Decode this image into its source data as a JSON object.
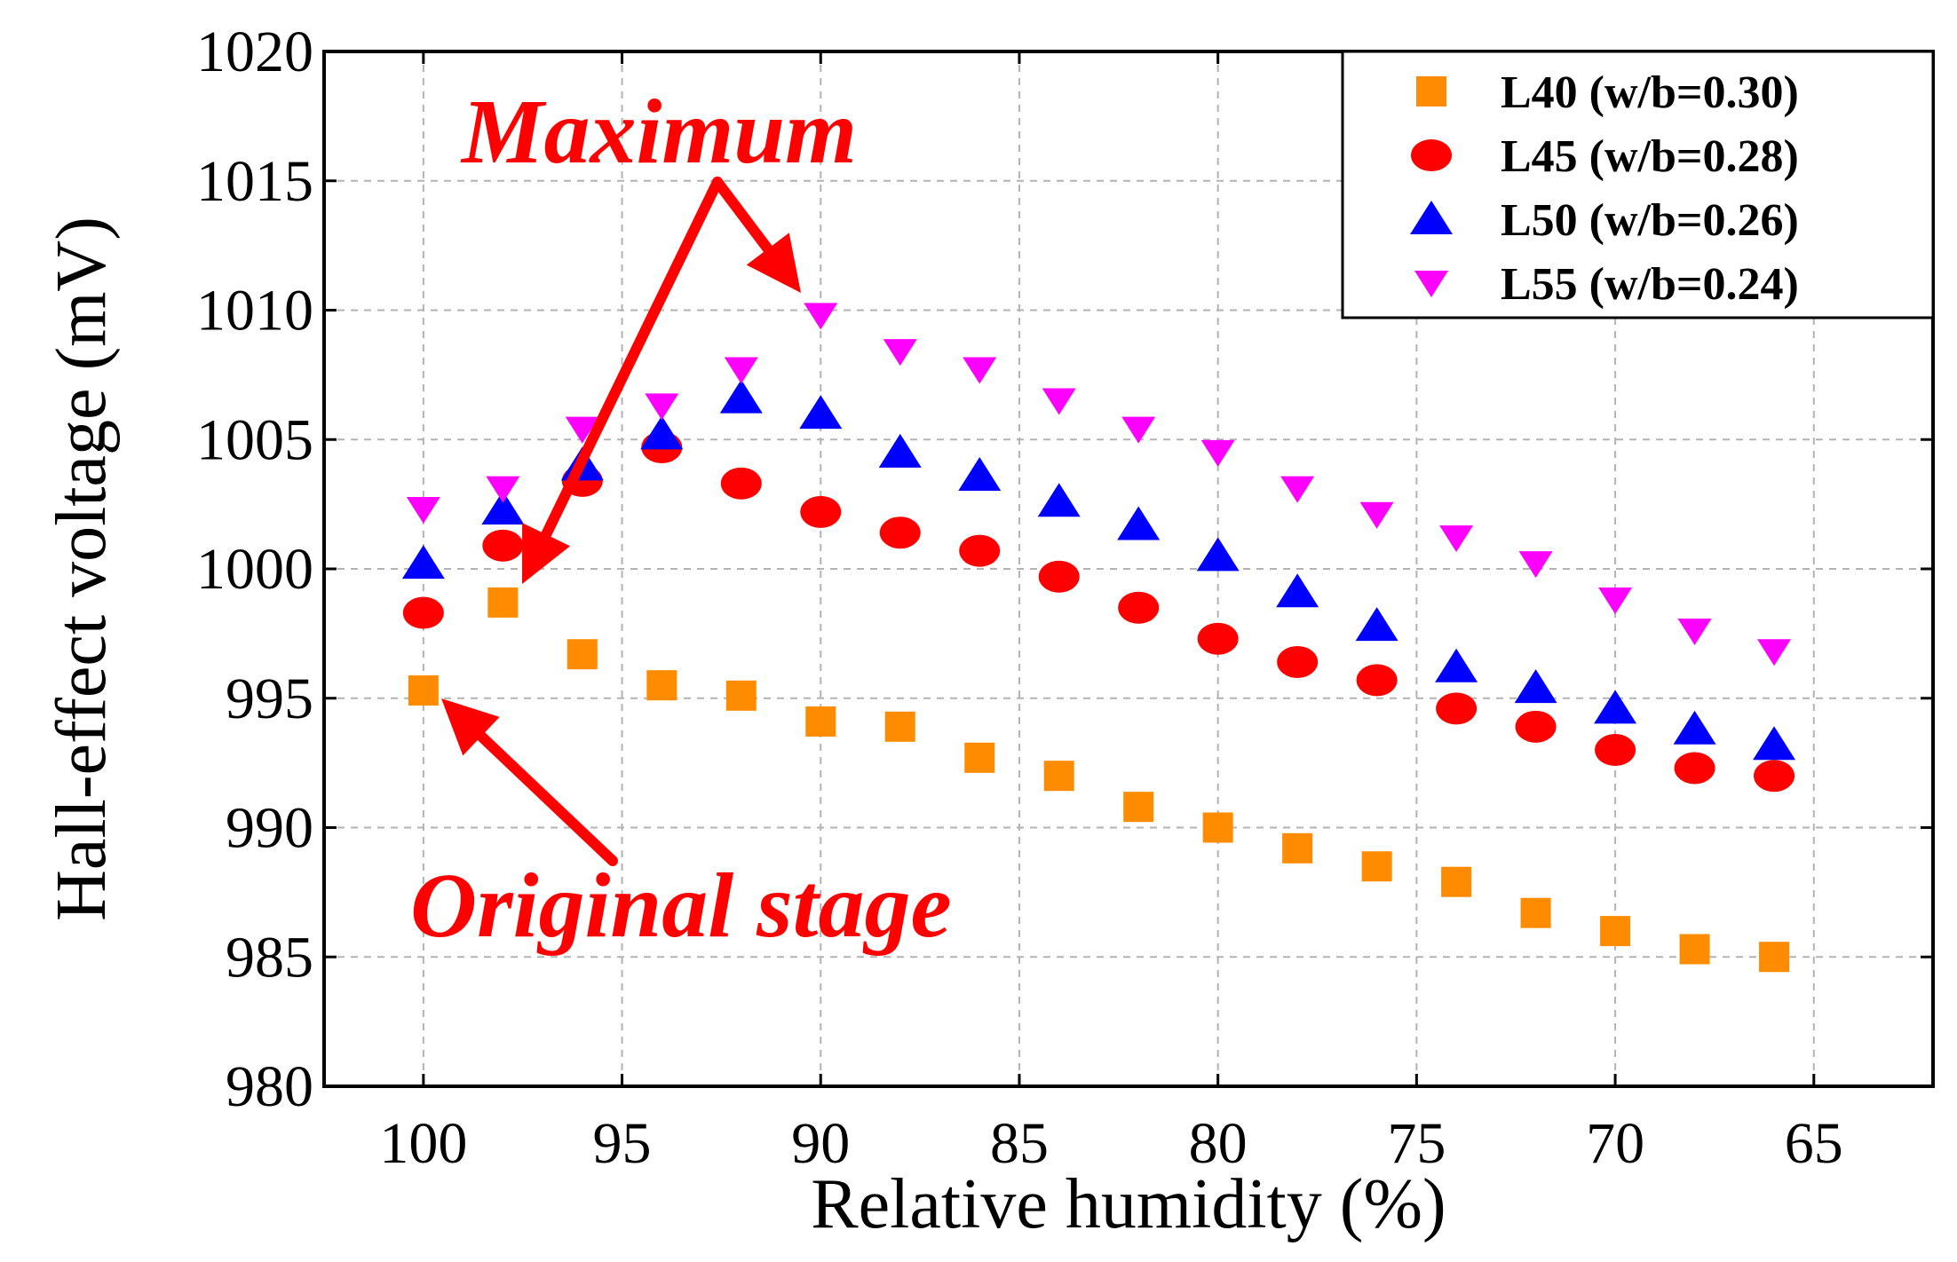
{
  "chart_data": {
    "type": "scatter",
    "title": "",
    "xlabel": "Relative humidity (%)",
    "ylabel": "Hall-effect voltage (mV)",
    "xlim": [
      102.5,
      62.0
    ],
    "ylim": [
      980,
      1020
    ],
    "xticks": [
      "100",
      "95",
      "90",
      "85",
      "80",
      "75",
      "70",
      "65"
    ],
    "yticks": [
      "980",
      "985",
      "990",
      "995",
      "1000",
      "1005",
      "1010",
      "1015",
      "1020"
    ],
    "grid": true,
    "legend_position": "top-right",
    "x": [
      100,
      98,
      96,
      94,
      92,
      90,
      88,
      86,
      84,
      82,
      80,
      78,
      76,
      74,
      72,
      70,
      68,
      66
    ],
    "series": [
      {
        "name": "L40 (w/b=0.30)",
        "marker": "square",
        "color": "#ff8c00",
        "values": [
          995.3,
          998.7,
          996.7,
          995.5,
          995.1,
          994.1,
          993.9,
          992.7,
          992.0,
          990.8,
          990.0,
          989.2,
          988.5,
          987.9,
          986.7,
          986.0,
          985.3,
          985.0
        ]
      },
      {
        "name": "L45 (w/b=0.28)",
        "marker": "circle",
        "color": "#ff0000",
        "values": [
          998.3,
          1000.9,
          1003.4,
          1004.7,
          1003.3,
          1002.2,
          1001.4,
          1000.7,
          999.7,
          998.5,
          997.3,
          996.4,
          995.7,
          994.6,
          993.9,
          993.0,
          992.3,
          992.0
        ]
      },
      {
        "name": "L50 (w/b=0.26)",
        "marker": "triangle-up",
        "color": "#0000ff",
        "values": [
          1000.2,
          1002.3,
          1004.0,
          1005.2,
          1006.6,
          1006.0,
          1004.5,
          1003.6,
          1002.6,
          1001.7,
          1000.5,
          999.1,
          997.8,
          996.2,
          995.4,
          994.6,
          993.8,
          993.2
        ]
      },
      {
        "name": "L55 (w/b=0.24)",
        "marker": "triangle-down",
        "color": "#ff00ff",
        "values": [
          1002.3,
          1003.1,
          1005.4,
          1006.3,
          1007.7,
          1009.8,
          1008.4,
          1007.7,
          1006.5,
          1005.4,
          1004.5,
          1003.1,
          1002.1,
          1001.2,
          1000.2,
          998.8,
          997.6,
          996.8
        ]
      }
    ],
    "annotations": [
      {
        "text": "Maximum"
      },
      {
        "text": "Original stage"
      }
    ]
  }
}
